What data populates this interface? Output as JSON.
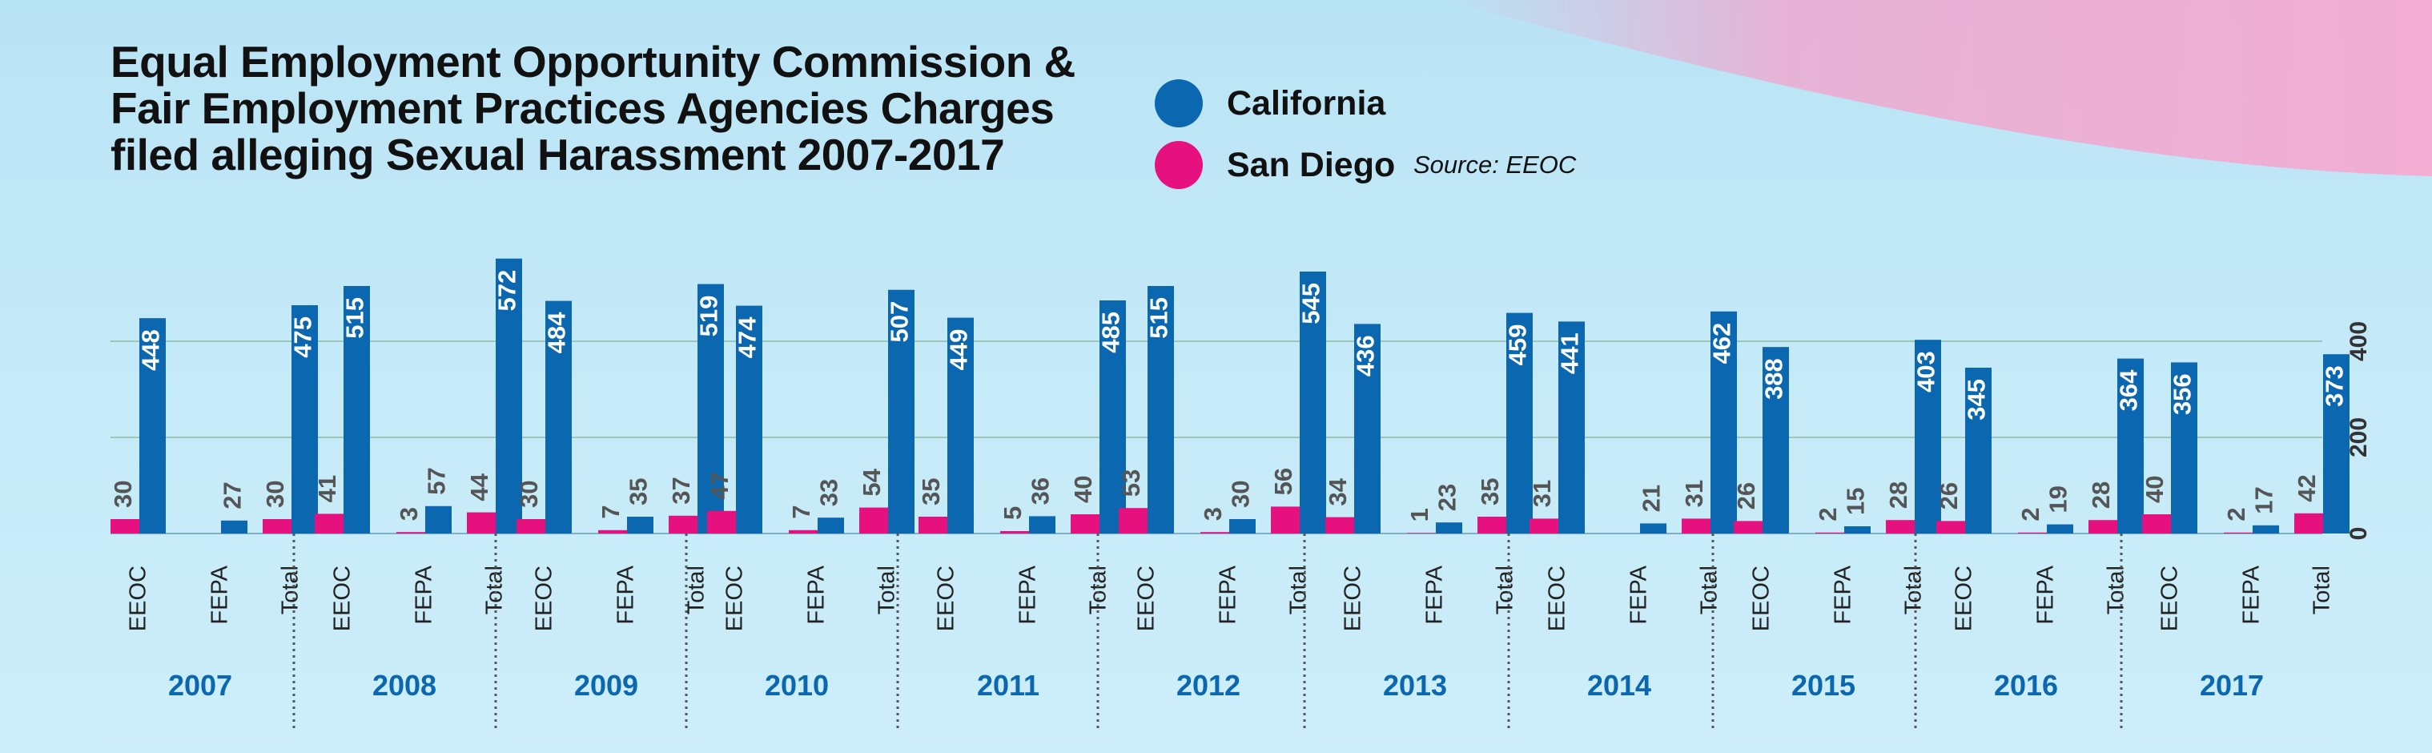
{
  "title_lines": [
    "Equal Employment Opportunity Commission &",
    "Fair Employment Practices Agencies Charges",
    "filed alleging Sexual Harassment 2007-2017"
  ],
  "legend": [
    {
      "name": "California",
      "color": "#0a67b0"
    },
    {
      "name": "San Diego",
      "color": "#e6117f"
    }
  ],
  "source": "Source: EEOC",
  "colors": {
    "california": "#0a67b0",
    "san_diego": "#e6117f",
    "year_label": "#0a67b0",
    "gridline": "#9cc7b4"
  },
  "chart_data": {
    "type": "bar",
    "title": "Equal Employment Opportunity Commission & Fair Employment Practices Agencies Charges filed alleging Sexual Harassment 2007-2017",
    "subcategories": [
      "EEOC",
      "FEPA",
      "Total"
    ],
    "years": [
      "2007",
      "2008",
      "2009",
      "2010",
      "2011",
      "2012",
      "2013",
      "2014",
      "2015",
      "2016",
      "2017"
    ],
    "series": [
      {
        "name": "San Diego",
        "values": [
          [
            30,
            null,
            30
          ],
          [
            41,
            3,
            44
          ],
          [
            30,
            7,
            37
          ],
          [
            47,
            7,
            54
          ],
          [
            35,
            5,
            40
          ],
          [
            53,
            3,
            56
          ],
          [
            34,
            1,
            35
          ],
          [
            31,
            null,
            31
          ],
          [
            26,
            2,
            28
          ],
          [
            26,
            2,
            28
          ],
          [
            40,
            2,
            42
          ]
        ]
      },
      {
        "name": "California",
        "values": [
          [
            448,
            27,
            475
          ],
          [
            515,
            57,
            572
          ],
          [
            484,
            35,
            519
          ],
          [
            474,
            33,
            507
          ],
          [
            449,
            36,
            485
          ],
          [
            515,
            30,
            545
          ],
          [
            436,
            23,
            459
          ],
          [
            441,
            21,
            462
          ],
          [
            388,
            15,
            403
          ],
          [
            345,
            19,
            364
          ],
          [
            356,
            17,
            373
          ]
        ]
      }
    ],
    "y_ticks": [
      0,
      200,
      400
    ],
    "ylim": [
      0,
      580
    ],
    "grid": true,
    "y_axis_position": "right",
    "legend_position": "top"
  }
}
